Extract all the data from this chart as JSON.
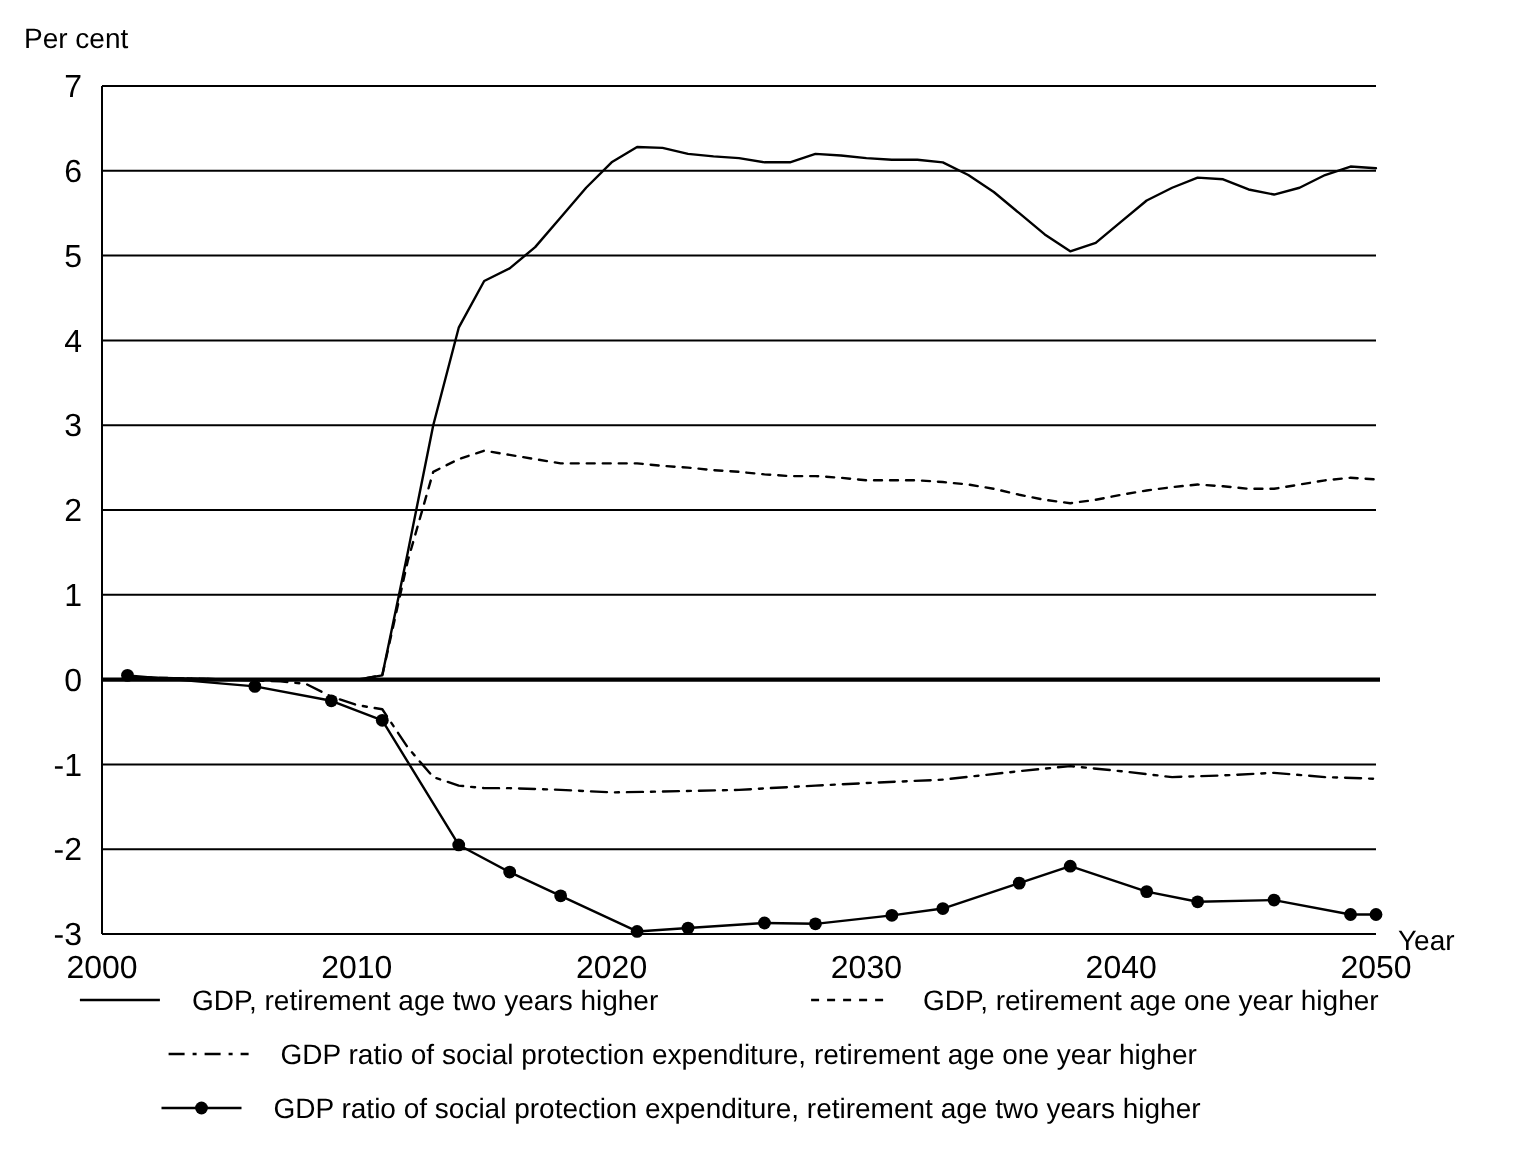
{
  "chart_data": {
    "type": "line",
    "ylabel": "Per cent",
    "xlabel": "Year",
    "xlim": [
      2000,
      2050
    ],
    "xticks": [
      2000,
      2010,
      2020,
      2030,
      2040,
      2050
    ],
    "ylim": [
      -3,
      7
    ],
    "yticks": [
      -3,
      -2,
      -1,
      0,
      1,
      2,
      3,
      4,
      5,
      6,
      7
    ],
    "grid": "y",
    "legend": "bottom",
    "series": [
      {
        "name": "GDP, retirement age two years higher",
        "color": "#000000",
        "line_style": "solid",
        "marker": "none",
        "x": [
          2001,
          2005,
          2010,
          2011,
          2012,
          2013,
          2014,
          2015,
          2016,
          2017,
          2018,
          2019,
          2020,
          2021,
          2022,
          2023,
          2024,
          2025,
          2026,
          2027,
          2028,
          2029,
          2030,
          2031,
          2032,
          2033,
          2034,
          2035,
          2036,
          2037,
          2038,
          2039,
          2040,
          2041,
          2042,
          2043,
          2044,
          2045,
          2046,
          2047,
          2048,
          2049,
          2050
        ],
        "values": [
          0.03,
          0,
          0,
          0.05,
          1.5,
          3.0,
          4.15,
          4.7,
          4.85,
          5.1,
          5.45,
          5.8,
          6.1,
          6.28,
          6.27,
          6.2,
          6.17,
          6.15,
          6.1,
          6.1,
          6.2,
          6.18,
          6.15,
          6.13,
          6.13,
          6.1,
          5.95,
          5.75,
          5.5,
          5.25,
          5.05,
          5.15,
          5.4,
          5.65,
          5.8,
          5.92,
          5.9,
          5.78,
          5.72,
          5.8,
          5.95,
          6.05,
          6.03
        ]
      },
      {
        "name": "GDP, retirement age one year higher",
        "color": "#000000",
        "line_style": "dashed",
        "marker": "none",
        "x": [
          2001,
          2005,
          2010,
          2011,
          2012,
          2013,
          2014,
          2015,
          2016,
          2017,
          2018,
          2019,
          2020,
          2021,
          2022,
          2023,
          2024,
          2025,
          2026,
          2027,
          2028,
          2029,
          2030,
          2031,
          2032,
          2033,
          2034,
          2035,
          2036,
          2037,
          2038,
          2039,
          2040,
          2041,
          2042,
          2043,
          2044,
          2045,
          2046,
          2047,
          2048,
          2049,
          2050
        ],
        "values": [
          0.03,
          0,
          0,
          0.05,
          1.4,
          2.45,
          2.6,
          2.7,
          2.65,
          2.6,
          2.55,
          2.55,
          2.55,
          2.55,
          2.52,
          2.5,
          2.47,
          2.45,
          2.42,
          2.4,
          2.4,
          2.38,
          2.35,
          2.35,
          2.35,
          2.33,
          2.3,
          2.25,
          2.18,
          2.12,
          2.08,
          2.12,
          2.18,
          2.23,
          2.27,
          2.3,
          2.28,
          2.25,
          2.25,
          2.3,
          2.35,
          2.38,
          2.36
        ]
      },
      {
        "name": "GDP ratio of social protection expenditure, retirement age one year higher",
        "color": "#000000",
        "line_style": "dashdot",
        "marker": "none",
        "x": [
          2001,
          2004,
          2007,
          2008,
          2009,
          2010,
          2011,
          2012,
          2013,
          2014,
          2015,
          2016,
          2018,
          2020,
          2022,
          2025,
          2028,
          2030,
          2033,
          2036,
          2038,
          2040,
          2042,
          2044,
          2046,
          2048,
          2050
        ],
        "values": [
          0.02,
          0.01,
          -0.02,
          -0.05,
          -0.2,
          -0.3,
          -0.35,
          -0.8,
          -1.15,
          -1.25,
          -1.28,
          -1.28,
          -1.3,
          -1.33,
          -1.32,
          -1.3,
          -1.25,
          -1.22,
          -1.18,
          -1.08,
          -1.02,
          -1.08,
          -1.15,
          -1.13,
          -1.1,
          -1.15,
          -1.17
        ]
      },
      {
        "name": "GDP ratio of social protection expenditure, retirement age two years higher",
        "color": "#000000",
        "line_style": "solid",
        "marker": "circle",
        "x": [
          2001,
          2006,
          2009,
          2011,
          2014,
          2016,
          2018,
          2021,
          2023,
          2026,
          2028,
          2031,
          2033,
          2036,
          2038,
          2041,
          2043,
          2046,
          2049,
          2050
        ],
        "values": [
          0.05,
          -0.08,
          -0.25,
          -0.48,
          -1.95,
          -2.27,
          -2.55,
          -2.97,
          -2.93,
          -2.87,
          -2.88,
          -2.78,
          -2.7,
          -2.4,
          -2.2,
          -2.5,
          -2.62,
          -2.6,
          -2.77,
          -2.77
        ]
      }
    ]
  }
}
